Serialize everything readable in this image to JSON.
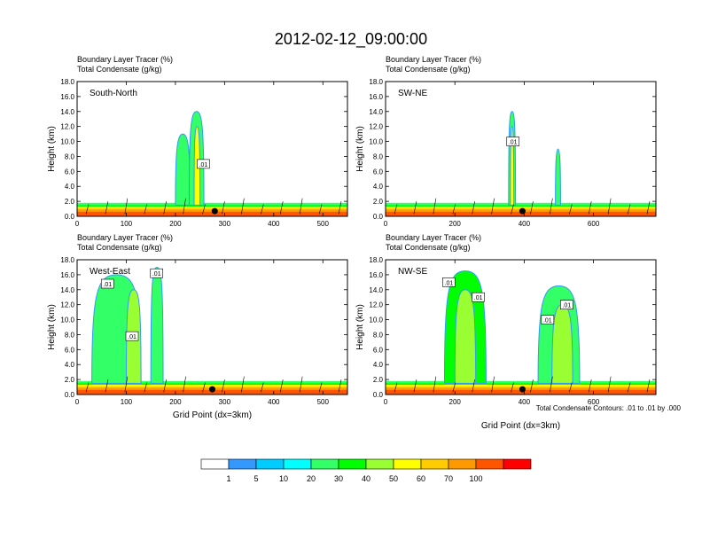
{
  "page_title": "2012-02-12_09:00:00",
  "chart_data": [
    {
      "type": "heatmap",
      "panel": "South-North",
      "title_line1": "Boundary Layer Tracer    (%)",
      "title_line2": "Total Condensate    (g/kg)",
      "ylabel": "Height (km)",
      "xlabel": "",
      "xlim": [
        0,
        550
      ],
      "ylim": [
        0,
        18
      ],
      "xticks": [
        0,
        100,
        200,
        300,
        400,
        500
      ],
      "yticks": [
        0,
        2,
        4,
        6,
        8,
        10,
        12,
        14,
        16,
        18
      ],
      "surface_marker_x": 280,
      "contour_labels": [
        {
          "x": 255,
          "y": 7.0,
          "text": ".01"
        }
      ],
      "columns": [
        {
          "x0": 200,
          "x1": 230,
          "top": 11.0,
          "value": 20
        },
        {
          "x0": 228,
          "x1": 258,
          "top": 14.0,
          "value": 20
        },
        {
          "x0": 238,
          "x1": 250,
          "top": 12.0,
          "value": 50
        }
      ]
    },
    {
      "type": "heatmap",
      "panel": "SW-NE",
      "title_line1": "Boundary Layer Tracer    (%)",
      "title_line2": "Total Condensate    (g/kg)",
      "ylabel": "Height (km)",
      "xlabel": "",
      "xlim": [
        0,
        780
      ],
      "ylim": [
        0,
        18
      ],
      "xticks": [
        0,
        200,
        400,
        600
      ],
      "yticks": [
        0,
        2,
        4,
        6,
        8,
        10,
        12,
        14,
        16,
        18
      ],
      "surface_marker_x": 395,
      "contour_labels": [
        {
          "x": 365,
          "y": 10.0,
          "text": ".01"
        }
      ],
      "columns": [
        {
          "x0": 355,
          "x1": 375,
          "top": 14.0,
          "value": 20
        },
        {
          "x0": 360,
          "x1": 370,
          "top": 12.0,
          "value": 50
        },
        {
          "x0": 490,
          "x1": 505,
          "top": 9.0,
          "value": 20
        }
      ]
    },
    {
      "type": "heatmap",
      "panel": "West-East",
      "title_line1": "Boundary Layer Tracer    (%)",
      "title_line2": "Total Condensate    (g/kg)",
      "ylabel": "Height (km)",
      "xlabel": "Grid Point (dx=3km)",
      "xlim": [
        0,
        550
      ],
      "ylim": [
        0,
        18
      ],
      "xticks": [
        0,
        100,
        200,
        300,
        400,
        500
      ],
      "yticks": [
        0,
        2,
        4,
        6,
        8,
        10,
        12,
        14,
        16,
        18
      ],
      "surface_marker_x": 275,
      "contour_labels": [
        {
          "x": 60,
          "y": 14.8,
          "text": ".01"
        },
        {
          "x": 110,
          "y": 7.8,
          "text": ".01"
        },
        {
          "x": 160,
          "y": 16.2,
          "text": ".01"
        }
      ],
      "columns": [
        {
          "x0": 30,
          "x1": 130,
          "top": 16.0,
          "value": 20
        },
        {
          "x0": 100,
          "x1": 130,
          "top": 14.0,
          "value": 40
        },
        {
          "x0": 150,
          "x1": 175,
          "top": 17.0,
          "value": 20
        }
      ]
    },
    {
      "type": "heatmap",
      "panel": "NW-SE",
      "title_line1": "Boundary Layer Tracer    (%)",
      "title_line2": "Total Condensate    (g/kg)",
      "ylabel": "Height (km)",
      "xlabel": "Grid Point (dx=3km)",
      "xlim": [
        0,
        780
      ],
      "ylim": [
        0,
        18
      ],
      "xticks": [
        0,
        200,
        400,
        600
      ],
      "yticks": [
        0,
        2,
        4,
        6,
        8,
        10,
        12,
        14,
        16,
        18
      ],
      "surface_marker_x": 395,
      "contour_labels": [
        {
          "x": 180,
          "y": 15.0,
          "text": ".01"
        },
        {
          "x": 265,
          "y": 13.0,
          "text": ".01"
        },
        {
          "x": 465,
          "y": 10.0,
          "text": ".01"
        },
        {
          "x": 520,
          "y": 12.0,
          "text": ".01"
        }
      ],
      "columns": [
        {
          "x0": 170,
          "x1": 290,
          "top": 16.5,
          "value": 30
        },
        {
          "x0": 200,
          "x1": 260,
          "top": 14.0,
          "value": 40
        },
        {
          "x0": 440,
          "x1": 560,
          "top": 14.5,
          "value": 20
        },
        {
          "x0": 480,
          "x1": 540,
          "top": 12.0,
          "value": 40
        }
      ]
    }
  ],
  "footnote": "Total Condensate Contours: .01 to .01 by .000",
  "colorbar": {
    "labels": [
      "1",
      "5",
      "10",
      "20",
      "30",
      "40",
      "50",
      "60",
      "70",
      "100"
    ],
    "colors": [
      "#ffffff",
      "#3399ff",
      "#00ccff",
      "#00ffff",
      "#33ff66",
      "#00ff00",
      "#99ff33",
      "#ffff00",
      "#ffcc00",
      "#ff9900",
      "#ff5500",
      "#ff0000"
    ]
  }
}
